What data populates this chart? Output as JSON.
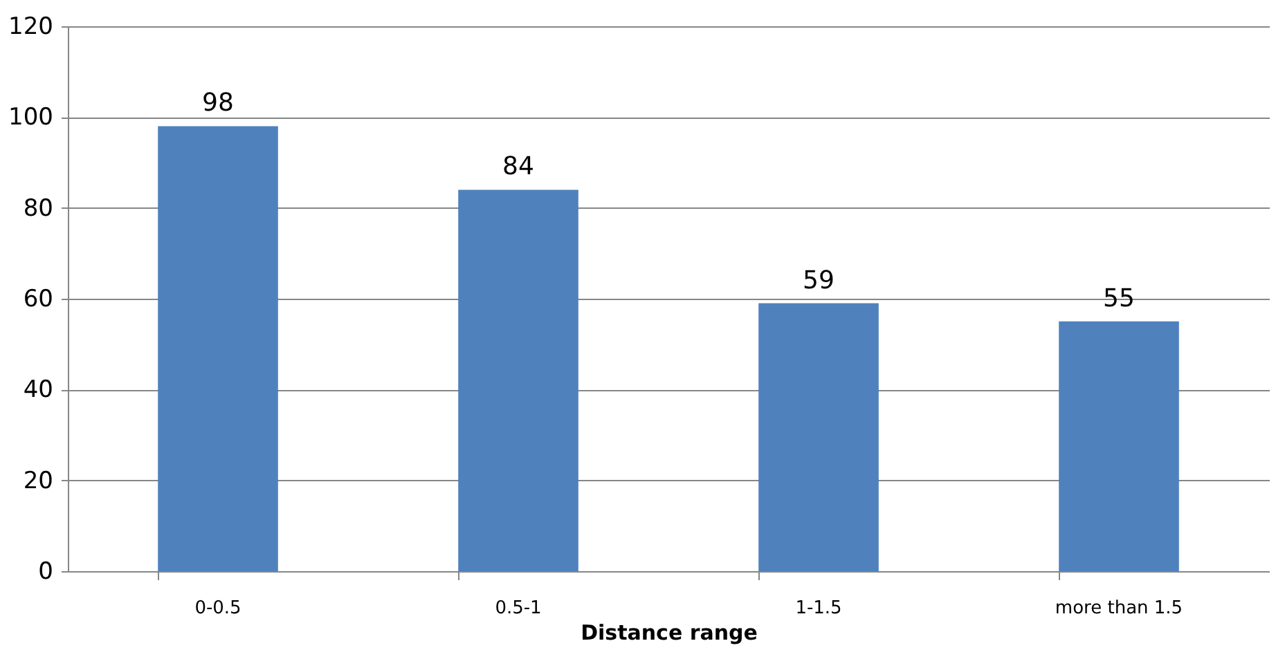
{
  "chart_data": {
    "type": "bar",
    "xlabel": "Distance range",
    "categories": [
      "0-0.5",
      "0.5-1",
      "1-1.5",
      "more than 1.5"
    ],
    "values": [
      98,
      84,
      59,
      55
    ],
    "color": "#4f81bd",
    "ylim": [
      0,
      120
    ],
    "yticks": [
      0,
      20,
      40,
      60,
      80,
      100,
      120
    ],
    "grid": "y",
    "data_labels": true
  }
}
